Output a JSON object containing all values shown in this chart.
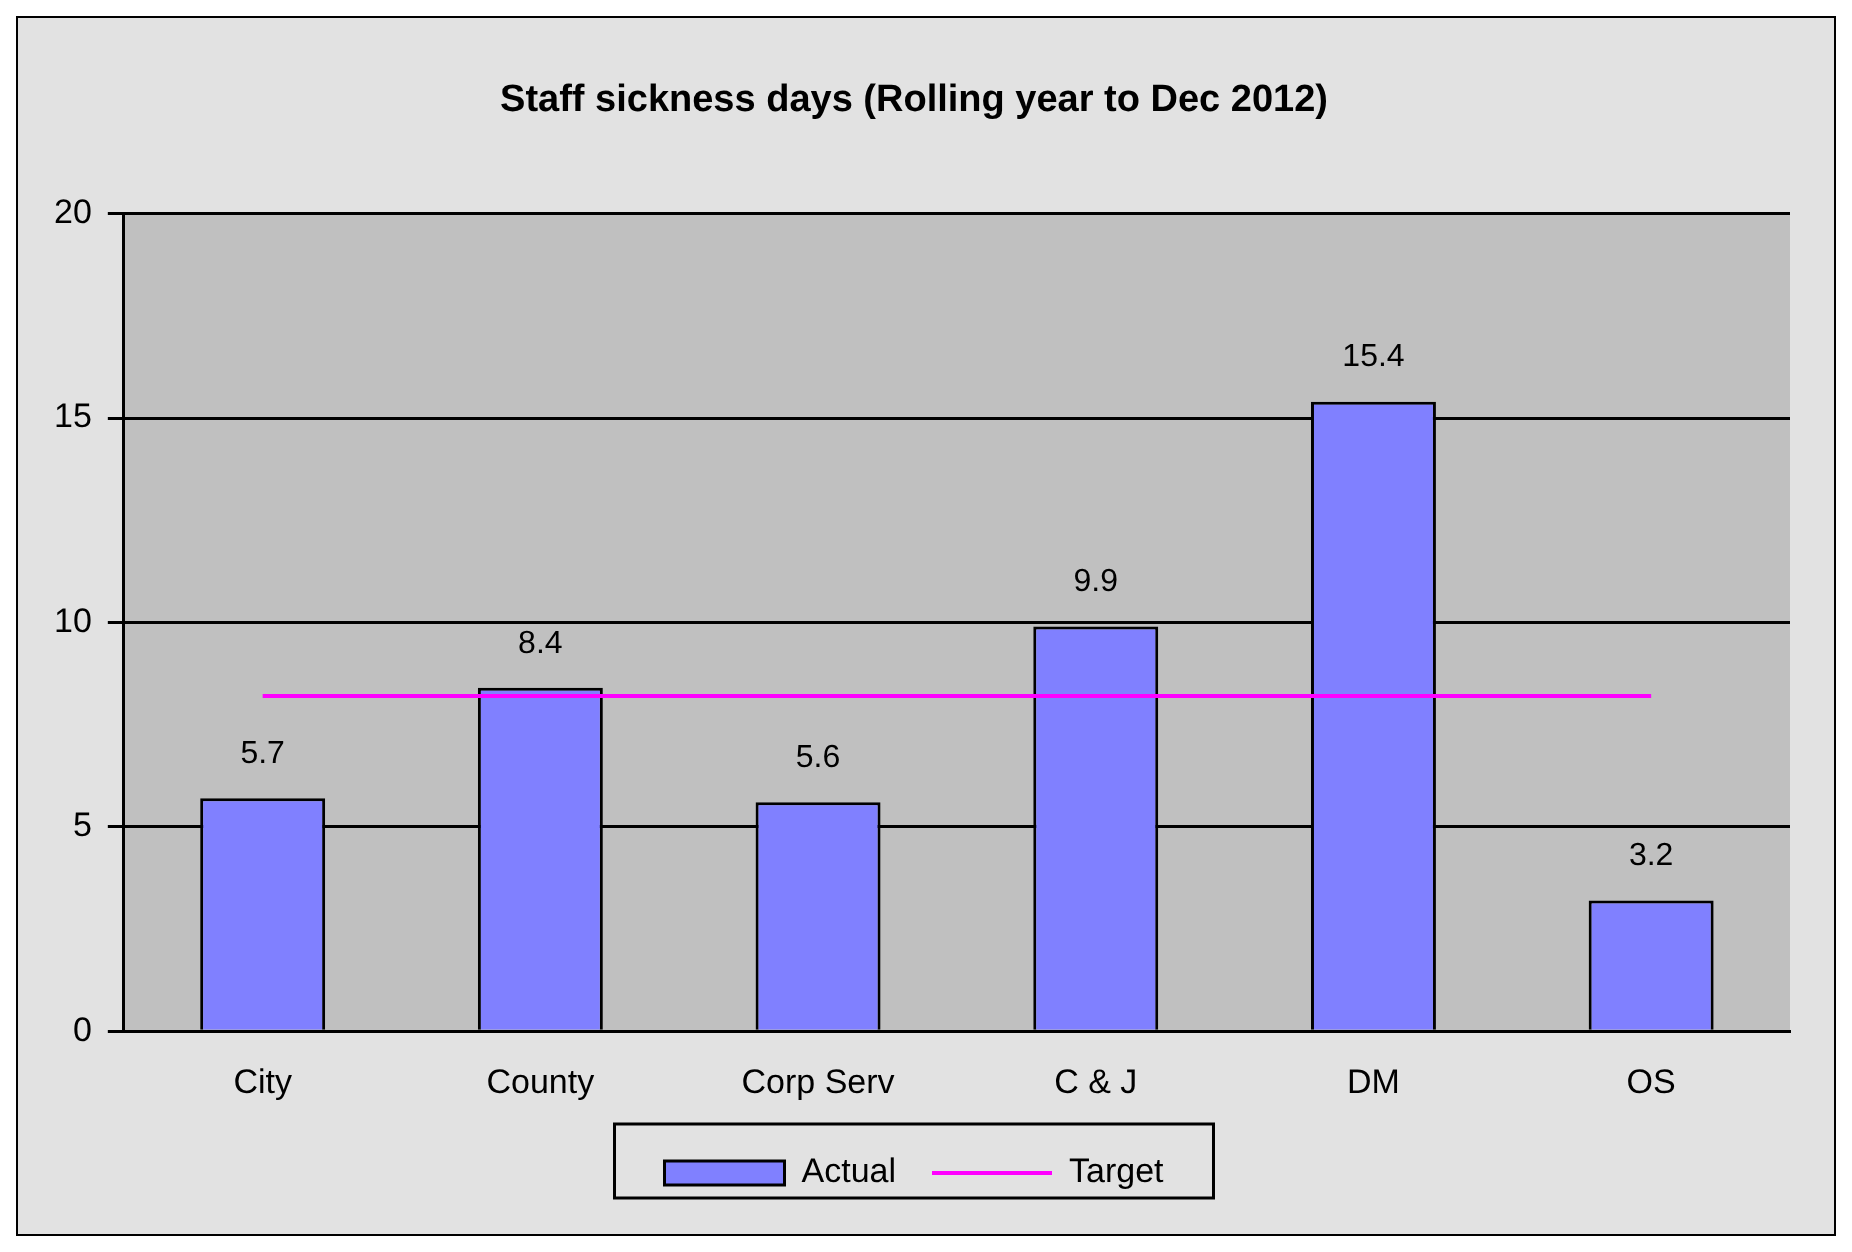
{
  "chart_data": {
    "type": "bar",
    "title": "Staff sickness days (Rolling year to Dec 2012)",
    "categories": [
      "City",
      "County",
      "Corp Serv",
      "C & J",
      "DM",
      "OS"
    ],
    "series": [
      {
        "name": "Actual",
        "color": "#8080ff",
        "values": [
          5.7,
          8.4,
          5.6,
          9.9,
          15.4,
          3.2
        ],
        "value_labels": [
          "5.7",
          "8.4",
          "5.6",
          "9.9",
          "15.4",
          "3.2"
        ]
      },
      {
        "name": "Target",
        "type": "line",
        "color": "#ff00ff",
        "values": [
          8.2,
          8.2,
          8.2,
          8.2,
          8.2,
          8.2
        ]
      }
    ],
    "ylim": [
      0,
      20
    ],
    "yticks": [
      0,
      5,
      10,
      15,
      20
    ],
    "grid": "y",
    "legend": "bottom",
    "marker": "none",
    "line_style": "solid"
  }
}
